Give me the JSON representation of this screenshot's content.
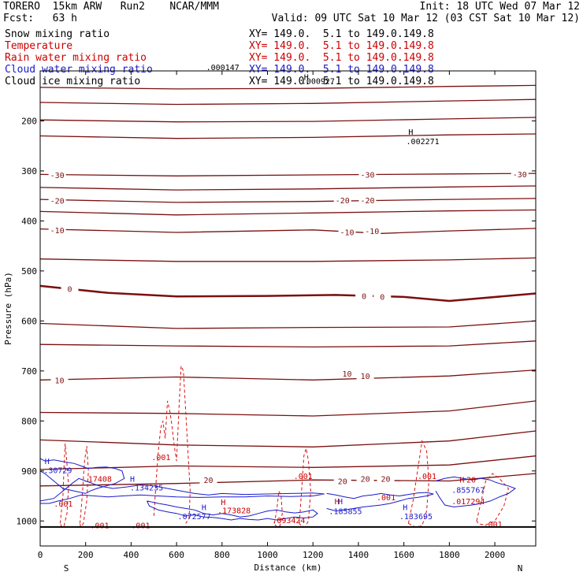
{
  "header": {
    "model": "TORERO  15km ARW   Run2    NCAR/MMM",
    "init": "Init: 18 UTC Wed 07 Mar 12",
    "fcst": "Fcst:   63 h",
    "valid": "Valid: 09 UTC Sat 10 Mar 12 (03 CST Sat 10 Mar 12)",
    "fields": [
      {
        "name": "Snow mixing ratio",
        "color": "#000000",
        "xy": "XY= 149.0.  5.1 to 149.0.149.8"
      },
      {
        "name": "Temperature",
        "color": "#cc0000",
        "xy": "XY= 149.0.  5.1 to 149.0.149.8"
      },
      {
        "name": "Rain water mixing ratio",
        "color": "#cc0000",
        "xy": "XY= 149.0.  5.1 to 149.0.149.8"
      },
      {
        "name": "Cloud water mixing ratio",
        "color": "#1a1acc",
        "xy": "XY= 149.0.  5.1 to 149.0.149.8"
      },
      {
        "name": "Cloud ice mixing ratio",
        "color": "#000000",
        "xy": "XY= 149.0.  5.1 to 149.0.149.8"
      }
    ]
  },
  "chart_data": {
    "type": "line",
    "title": "",
    "xlabel": "Distance (km)",
    "ylabel": "Pressure (hPa)",
    "xlim": [
      0,
      2180
    ],
    "ylim": [
      1050,
      100
    ],
    "x_ticks": [
      0,
      200,
      400,
      600,
      800,
      1000,
      1200,
      1400,
      1600,
      1800,
      2000
    ],
    "y_ticks": [
      200,
      300,
      400,
      500,
      600,
      700,
      800,
      900,
      1000
    ],
    "endpoint_labels": {
      "left": "S",
      "right": "N"
    },
    "temperature_contours": [
      {
        "level": -50,
        "x": [
          0,
          600,
          1200,
          1800,
          2180
        ],
        "p": [
          133,
          136,
          135,
          131,
          129
        ]
      },
      {
        "level": -45,
        "x": [
          0,
          600,
          1200,
          1800,
          2180
        ],
        "p": [
          163,
          167,
          165,
          160,
          157
        ]
      },
      {
        "level": -40,
        "x": [
          0,
          600,
          1200,
          1800,
          2180
        ],
        "p": [
          198,
          202,
          201,
          196,
          193
        ]
      },
      {
        "level": -35,
        "x": [
          0,
          600,
          1200,
          1800,
          2180
        ],
        "p": [
          230,
          235,
          233,
          228,
          226
        ]
      },
      {
        "level": -30,
        "x": [
          0,
          600,
          1200,
          1800,
          2180
        ],
        "p": [
          307,
          310,
          308,
          306,
          305
        ]
      },
      {
        "level": -25,
        "x": [
          0,
          600,
          1200,
          1800,
          2180
        ],
        "p": [
          333,
          338,
          336,
          332,
          330
        ]
      },
      {
        "level": -20,
        "x": [
          0,
          600,
          1200,
          1800,
          2180
        ],
        "p": [
          357,
          363,
          361,
          357,
          355
        ]
      },
      {
        "level": -15,
        "x": [
          0,
          600,
          1200,
          1800,
          2180
        ],
        "p": [
          381,
          388,
          384,
          380,
          378
        ]
      },
      {
        "level": -10,
        "x": [
          0,
          600,
          1200,
          1500,
          1800,
          2180
        ],
        "p": [
          416,
          423,
          418,
          425,
          420,
          415
        ]
      },
      {
        "level": -5,
        "x": [
          0,
          600,
          1200,
          1800,
          2180
        ],
        "p": [
          476,
          481,
          481,
          478,
          474
        ]
      },
      {
        "level": 0,
        "x": [
          0,
          300,
          600,
          1000,
          1300,
          1600,
          1800,
          2180
        ],
        "p": [
          530,
          544,
          551,
          550,
          548,
          552,
          560,
          545
        ]
      },
      {
        "level": 5,
        "x": [
          0,
          600,
          1200,
          1800,
          2180
        ],
        "p": [
          605,
          615,
          613,
          612,
          600
        ]
      },
      {
        "level": 8,
        "x": [
          0,
          600,
          1200,
          1800,
          2180
        ],
        "p": [
          647,
          650,
          652,
          650,
          640
        ]
      },
      {
        "level": 10,
        "x": [
          0,
          600,
          1200,
          1800,
          2180
        ],
        "p": [
          718,
          712,
          718,
          710,
          698
        ]
      },
      {
        "level": 13,
        "x": [
          0,
          600,
          1200,
          1800,
          2180
        ],
        "p": [
          783,
          785,
          790,
          780,
          760
        ]
      },
      {
        "level": 15,
        "x": [
          0,
          600,
          1200,
          1800,
          2180
        ],
        "p": [
          838,
          848,
          852,
          840,
          820
        ]
      },
      {
        "level": 18,
        "x": [
          0,
          600,
          1200,
          1800,
          2180
        ],
        "p": [
          897,
          890,
          893,
          888,
          870
        ]
      },
      {
        "level": 20,
        "x": [
          0,
          600,
          1200,
          1800,
          2180
        ],
        "p": [
          930,
          925,
          918,
          920,
          905
        ]
      }
    ],
    "temperature_labels": [
      {
        "text": "-30",
        "x": 75,
        "p": 308
      },
      {
        "text": "-30",
        "x": 1440,
        "p": 307
      },
      {
        "text": "-30",
        "x": 2110,
        "p": 306
      },
      {
        "text": "-20",
        "x": 75,
        "p": 359
      },
      {
        "text": "-20",
        "x": 1330,
        "p": 358
      },
      {
        "text": "-20",
        "x": 1440,
        "p": 358
      },
      {
        "text": "-10",
        "x": 75,
        "p": 418
      },
      {
        "text": "-10",
        "x": 1350,
        "p": 422
      },
      {
        "text": "-10",
        "x": 1460,
        "p": 420
      },
      {
        "text": "0",
        "x": 130,
        "p": 536
      },
      {
        "text": "0",
        "x": 1425,
        "p": 550
      },
      {
        "text": "0",
        "x": 1505,
        "p": 551
      },
      {
        "text": "10",
        "x": 85,
        "p": 718
      },
      {
        "text": "10",
        "x": 1350,
        "p": 705
      },
      {
        "text": "10",
        "x": 1430,
        "p": 710
      },
      {
        "text": "20",
        "x": 740,
        "p": 918
      },
      {
        "text": "20",
        "x": 1330,
        "p": 920
      },
      {
        "text": "20",
        "x": 1430,
        "p": 915
      },
      {
        "text": "20",
        "x": 1520,
        "p": 915
      }
    ],
    "labels": [
      {
        "text": ".000147",
        "x": 730,
        "p": 92,
        "color": "#000000"
      },
      {
        "text": ".000927",
        "x": 1150,
        "p": 120,
        "color": "#000000"
      },
      {
        "text": "H",
        "x": 1160,
        "p": 112,
        "color": "#000000"
      },
      {
        "text": "H",
        "x": 1620,
        "p": 221,
        "color": "#000000"
      },
      {
        "text": ".002271",
        "x": 1610,
        "p": 240,
        "color": "#000000"
      },
      {
        "text": ".001",
        "x": 490,
        "p": 872,
        "color": "#cc0000"
      },
      {
        "text": ".001",
        "x": 1115,
        "p": 910,
        "color": "#cc0000"
      },
      {
        "text": ".001",
        "x": 1660,
        "p": 910,
        "color": "#cc0000"
      },
      {
        "text": ".001",
        "x": 60,
        "p": 965,
        "color": "#cc0000"
      },
      {
        "text": ".001",
        "x": 1480,
        "p": 952,
        "color": "#cc0000"
      },
      {
        "text": ".001",
        "x": 220,
        "p": 1008,
        "color": "#cc0000"
      },
      {
        "text": ".001",
        "x": 400,
        "p": 1008,
        "color": "#cc0000"
      },
      {
        "text": ".001",
        "x": 1950,
        "p": 1006,
        "color": "#cc0000"
      },
      {
        "text": ".17408",
        "x": 190,
        "p": 915,
        "color": "#cc0000"
      },
      {
        "text": ".173828",
        "x": 780,
        "p": 978,
        "color": "#cc0000"
      },
      {
        "text": ".093424",
        "x": 1020,
        "p": 998,
        "color": "#cc0000"
      },
      {
        "text": ".017294",
        "x": 1810,
        "p": 960,
        "color": "#cc0000"
      },
      {
        "text": "H",
        "x": 795,
        "p": 962,
        "color": "#cc0000"
      },
      {
        "text": "H",
        "x": 1295,
        "p": 960,
        "color": "#cc0000"
      },
      {
        "text": "H",
        "x": 1845,
        "p": 917,
        "color": "#cc0000"
      },
      {
        "text": "20",
        "x": 1875,
        "p": 917,
        "color": "#cc0000"
      },
      {
        "text": "H",
        "x": 20,
        "p": 880,
        "color": "#1a1acc"
      },
      {
        "text": ".30729",
        "x": 15,
        "p": 898,
        "color": "#1a1acc"
      },
      {
        "text": "H",
        "x": 395,
        "p": 915,
        "color": "#1a1acc"
      },
      {
        "text": ".134235",
        "x": 395,
        "p": 933,
        "color": "#1a1acc"
      },
      {
        "text": "H",
        "x": 710,
        "p": 972,
        "color": "#1a1acc"
      },
      {
        "text": ".072577",
        "x": 605,
        "p": 990,
        "color": "#1a1acc"
      },
      {
        "text": "H",
        "x": 1310,
        "p": 960,
        "color": "#1a1acc"
      },
      {
        "text": ".185855",
        "x": 1270,
        "p": 980,
        "color": "#1a1acc"
      },
      {
        "text": "H",
        "x": 1595,
        "p": 972,
        "color": "#1a1acc"
      },
      {
        "text": ".133695",
        "x": 1580,
        "p": 990,
        "color": "#1a1acc"
      },
      {
        "text": ".855767",
        "x": 1810,
        "p": 937,
        "color": "#1a1acc"
      }
    ],
    "rain_contours": [
      {
        "x": [
          88,
          100,
          105,
          110,
          115,
          125,
          118,
          105,
          95,
          88
        ],
        "p": [
          1005,
          950,
          890,
          845,
          870,
          930,
          985,
          1010,
          1012,
          1005
        ]
      },
      {
        "x": [
          175,
          185,
          195,
          205,
          212,
          205,
          190,
          178,
          175
        ],
        "p": [
          1005,
          950,
          880,
          850,
          900,
          960,
          1005,
          1012,
          1005
        ]
      },
      {
        "x": [
          500,
          510,
          520,
          530,
          540,
          550,
          560,
          570,
          580,
          590,
          600,
          610,
          620,
          630,
          640,
          650,
          660,
          655,
          640
        ],
        "p": [
          990,
          920,
          860,
          815,
          800,
          835,
          760,
          780,
          810,
          850,
          880,
          780,
          690,
          700,
          780,
          860,
          940,
          995,
          1005
        ]
      },
      {
        "x": [
          1030,
          1040,
          1050,
          1060,
          1065,
          1055,
          1040,
          1030
        ],
        "p": [
          1005,
          980,
          940,
          950,
          985,
          1010,
          1012,
          1005
        ]
      },
      {
        "x": [
          1140,
          1150,
          1160,
          1170,
          1180,
          1190,
          1180,
          1165,
          1150,
          1140
        ],
        "p": [
          1005,
          940,
          870,
          855,
          880,
          940,
          1000,
          1012,
          1010,
          1005
        ]
      },
      {
        "x": [
          1620,
          1640,
          1660,
          1680,
          1700,
          1710,
          1700,
          1680,
          1650,
          1620
        ],
        "p": [
          1005,
          960,
          900,
          840,
          860,
          920,
          980,
          1010,
          1012,
          1005
        ]
      },
      {
        "x": [
          1920,
          1940,
          1960,
          1990,
          2020,
          2060,
          2040,
          2000,
          1960,
          1930,
          1920
        ],
        "p": [
          1000,
          960,
          920,
          905,
          915,
          935,
          970,
          1000,
          1008,
          1006,
          1000
        ]
      }
    ],
    "cloud_water_contours": [
      {
        "x": [
          0,
          20,
          60,
          110,
          150,
          180,
          210,
          250,
          290,
          330,
          360,
          370,
          330,
          290,
          250,
          220,
          200,
          150,
          100,
          60,
          20,
          0
        ],
        "p": [
          875,
          880,
          878,
          882,
          885,
          890,
          895,
          893,
          892,
          895,
          900,
          915,
          925,
          930,
          935,
          940,
          945,
          940,
          935,
          920,
          905,
          900
        ]
      },
      {
        "x": [
          0,
          60,
          100,
          140,
          170,
          200,
          260,
          320,
          380,
          440,
          500,
          560,
          620,
          680,
          740,
          800,
          900,
          1000,
          1100,
          1200,
          1250,
          1200,
          1100,
          1000,
          900,
          800,
          700,
          600,
          520,
          440,
          360,
          300,
          240,
          180,
          130,
          80,
          40,
          0
        ],
        "p": [
          960,
          955,
          940,
          925,
          915,
          920,
          930,
          935,
          932,
          928,
          930,
          935,
          940,
          945,
          948,
          945,
          947,
          946,
          945,
          944,
          946,
          950,
          951,
          950,
          952,
          952,
          953,
          952,
          950,
          948,
          950,
          952,
          950,
          948,
          955,
          960,
          965,
          965
        ]
      },
      {
        "x": [
          470,
          520,
          560,
          600,
          640,
          680,
          720,
          760,
          800,
          840,
          880,
          920,
          960,
          1000,
          1040,
          1080,
          1120,
          1160,
          1200,
          1220,
          1200,
          1160,
          1120,
          1080,
          1040,
          1000,
          960,
          920,
          880,
          840,
          800,
          760,
          720,
          680,
          640,
          600,
          560,
          520,
          480,
          470
        ],
        "p": [
          960,
          965,
          968,
          972,
          975,
          978,
          985,
          988,
          985,
          988,
          992,
          990,
          985,
          980,
          978,
          982,
          984,
          982,
          978,
          985,
          992,
          994,
          992,
          995,
          998,
          995,
          998,
          997,
          995,
          998,
          995,
          993,
          992,
          988,
          990,
          985,
          982,
          978,
          970,
          960
        ]
      },
      {
        "x": [
          1260,
          1300,
          1340,
          1380,
          1420,
          1460,
          1500,
          1540,
          1580,
          1620,
          1660,
          1700,
          1730,
          1700,
          1660,
          1620,
          1580,
          1540,
          1500,
          1460,
          1420,
          1380,
          1340,
          1300,
          1260
        ],
        "p": [
          945,
          948,
          952,
          955,
          950,
          948,
          945,
          948,
          950,
          947,
          944,
          943,
          946,
          950,
          953,
          955,
          960,
          965,
          968,
          970,
          972,
          975,
          978,
          980,
          975
        ]
      },
      {
        "x": [
          1740,
          1780,
          1820,
          1860,
          1900,
          1940,
          1980,
          2000,
          2020,
          2060,
          2090,
          2060,
          2020,
          1980,
          1940,
          1900,
          1860,
          1820,
          1780,
          1760,
          1740
        ],
        "p": [
          920,
          915,
          912,
          915,
          918,
          915,
          918,
          922,
          925,
          930,
          935,
          945,
          952,
          960,
          965,
          968,
          970,
          972,
          968,
          955,
          940
        ]
      }
    ]
  }
}
